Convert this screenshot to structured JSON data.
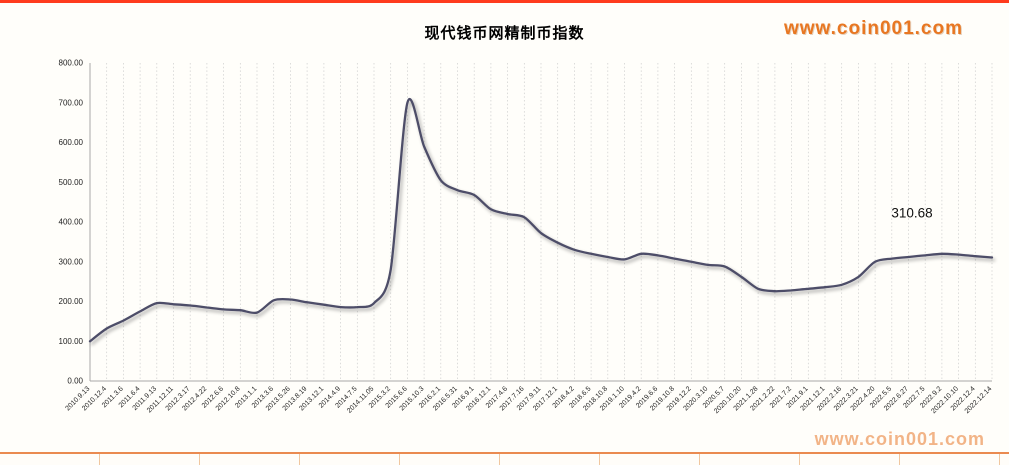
{
  "branding": {
    "site_top": "www.coin001.com",
    "site_watermark": "www.coin001.com",
    "brand_color": "#e87722",
    "watermark_color": "#f2b487",
    "top_bar_color": "#ff3b1d"
  },
  "chart_data": {
    "type": "line",
    "title": "现代钱币网精制币指数",
    "xlabel": "",
    "ylabel": "",
    "ylim": [
      0,
      800
    ],
    "y_ticks": [
      0,
      100,
      200,
      300,
      400,
      500,
      600,
      700,
      800
    ],
    "grid": "vertical-dashed",
    "legend": "none",
    "line_color": "#4d4d68",
    "annotation": {
      "text": "310.68"
    },
    "categories": [
      "2010.9.13",
      "2010.12.4",
      "2011.3.6",
      "2011.6.4",
      "2011.9.13",
      "2011.12.11",
      "2012.3.17",
      "2012.4.22",
      "2012.6.6",
      "2012.10.8",
      "2013.1.1",
      "2013.3.6",
      "2013.5.26",
      "2013.8.19",
      "2013.12.1",
      "2014.4.9",
      "2014.7.5",
      "2014.11.05",
      "2015.3.2",
      "2015.6.6",
      "2015.10.3",
      "2016.2.1",
      "2016.5.31",
      "2016.9.1",
      "2016.12.1",
      "2017.4.6",
      "2017.7.16",
      "2017.9.11",
      "2017.12.1",
      "2018.4.2",
      "2018.6.5",
      "2018.10.8",
      "2019.1.10",
      "2019.4.2",
      "2019.6.6",
      "2019.10.8",
      "2019.12.2",
      "2020.3.10",
      "2020.5.7",
      "2020.10.20",
      "2021.1.28",
      "2021.2.22",
      "2021.7.2",
      "2021.9.1",
      "2021.12.1",
      "2022.2.16",
      "2022.3.21",
      "2022.4.20",
      "2022.5.5",
      "2022.6.27",
      "2022.7.5",
      "2022.9.2",
      "2022.10.10",
      "2022.12.4",
      "2022.12.14"
    ],
    "values": [
      100,
      132,
      152,
      175,
      196,
      193,
      190,
      185,
      180,
      178,
      172,
      203,
      205,
      198,
      192,
      186,
      186,
      196,
      280,
      700,
      590,
      505,
      480,
      468,
      432,
      420,
      412,
      372,
      348,
      330,
      320,
      312,
      306,
      320,
      316,
      308,
      300,
      292,
      288,
      262,
      232,
      226,
      228,
      232,
      236,
      242,
      262,
      300,
      308,
      312,
      316,
      320,
      318,
      314,
      310.68
    ]
  }
}
